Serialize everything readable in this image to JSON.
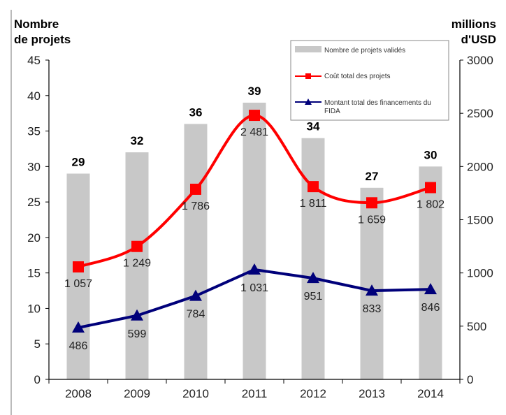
{
  "chart_data": {
    "type": "bar",
    "categories": [
      "2008",
      "2009",
      "2010",
      "2011",
      "2012",
      "2013",
      "2014"
    ],
    "series": [
      {
        "name": "Nombre de projets validés",
        "axis": "left",
        "kind": "bar",
        "color": "#c8c8c8",
        "values": [
          29,
          32,
          36,
          39,
          34,
          27,
          30
        ],
        "labels": [
          "29",
          "32",
          "36",
          "39",
          "34",
          "27",
          "30"
        ]
      },
      {
        "name": "Coût total des projets",
        "axis": "right",
        "kind": "line",
        "marker": "square",
        "color": "#ff0000",
        "values": [
          1057,
          1249,
          1786,
          2481,
          1811,
          1659,
          1802
        ],
        "labels": [
          "1 057",
          "1 249",
          "1 786",
          "2 481",
          "1 811",
          "1 659",
          "1 802"
        ]
      },
      {
        "name": "Montant total des financements du FIDA",
        "axis": "right",
        "kind": "line",
        "marker": "triangle",
        "color": "#00007a",
        "values": [
          486,
          599,
          784,
          1031,
          951,
          833,
          846
        ],
        "labels": [
          "486",
          "599",
          "784",
          "1 031",
          "951",
          "833",
          "846"
        ]
      }
    ],
    "y_left": {
      "title_line1": "Nombre",
      "title_line2": "de projets",
      "lim": [
        0,
        45
      ],
      "ticks": [
        "0",
        "5",
        "10",
        "15",
        "20",
        "25",
        "30",
        "35",
        "40",
        "45"
      ]
    },
    "y_right": {
      "title_line1": "millions",
      "title_line2": "d'USD",
      "lim": [
        0,
        3000
      ],
      "ticks": [
        "0",
        "500",
        "1000",
        "1500",
        "2000",
        "2500",
        "3000"
      ]
    },
    "grid": false,
    "legend_position": "top-right"
  }
}
